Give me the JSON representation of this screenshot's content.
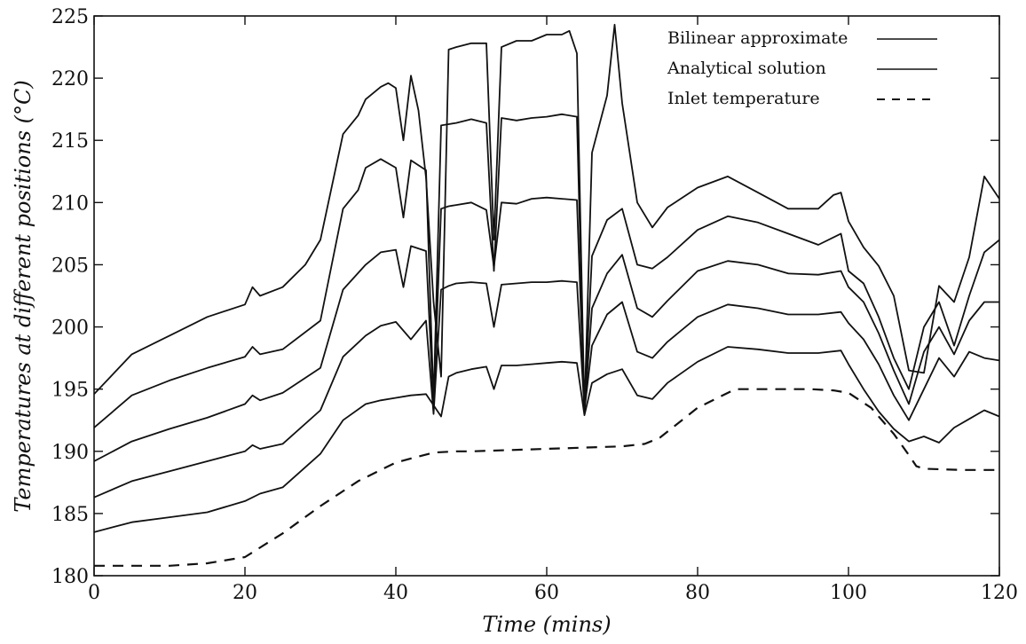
{
  "chart_data": {
    "type": "line",
    "title": "",
    "xlabel": "Time (mins)",
    "ylabel": "Temperatures at different positions (°C)",
    "xlim": [
      0,
      120
    ],
    "ylim": [
      180,
      225
    ],
    "xticks": [
      0,
      20,
      40,
      60,
      80,
      100,
      120
    ],
    "yticks": [
      180,
      185,
      190,
      195,
      200,
      205,
      210,
      215,
      220,
      225
    ],
    "grid": false,
    "legend_position": "top-right",
    "legend": [
      {
        "label": "Bilinear approximate",
        "style": "solid"
      },
      {
        "label": "Analytical solution",
        "style": "solid"
      },
      {
        "label": "Inlet temperature",
        "style": "dashed"
      }
    ],
    "series": [
      {
        "style": "solid",
        "x": [
          0,
          5,
          10,
          15,
          20,
          22,
          25,
          30,
          33,
          36,
          38,
          40,
          42,
          44,
          46,
          47,
          48,
          50,
          52,
          53,
          54,
          56,
          58,
          60,
          62,
          64,
          65,
          66,
          68,
          70,
          72,
          74,
          76,
          80,
          84,
          88,
          92,
          96,
          99,
          100,
          102,
          104,
          106,
          108,
          110,
          112,
          114,
          116,
          118,
          120
        ],
        "y": [
          183.5,
          184.3,
          184.7,
          185.1,
          186,
          186.6,
          187.1,
          189.8,
          192.5,
          193.8,
          194.1,
          194.3,
          194.5,
          194.6,
          192.8,
          196,
          196.3,
          196.6,
          196.8,
          195,
          196.9,
          196.9,
          197,
          197.1,
          197.2,
          197.1,
          192.9,
          195.5,
          196.2,
          196.6,
          194.5,
          194.2,
          195.5,
          197.2,
          198.4,
          198.2,
          197.9,
          197.9,
          198.1,
          197,
          195,
          193.2,
          191.8,
          190.8,
          191.2,
          190.7,
          191.9,
          192.6,
          193.3,
          192.8
        ]
      },
      {
        "style": "solid",
        "x": [
          0,
          5,
          10,
          15,
          20,
          21,
          22,
          25,
          30,
          33,
          36,
          38,
          40,
          42,
          44,
          45,
          46,
          47,
          48,
          50,
          52,
          53,
          54,
          56,
          58,
          60,
          62,
          64,
          65,
          66,
          68,
          70,
          72,
          74,
          76,
          80,
          84,
          88,
          92,
          96,
          99,
          100,
          102,
          104,
          106,
          108,
          110,
          112,
          114,
          116,
          118,
          120
        ],
        "y": [
          186.3,
          187.6,
          188.4,
          189.2,
          190,
          190.5,
          190.2,
          190.6,
          193.3,
          197.6,
          199.3,
          200.1,
          200.4,
          199,
          200.5,
          193,
          203,
          203.3,
          203.5,
          203.6,
          203.5,
          200,
          203.4,
          203.5,
          203.6,
          203.6,
          203.7,
          203.6,
          193.3,
          198.5,
          201,
          202,
          198,
          197.5,
          198.8,
          200.8,
          201.8,
          201.5,
          201,
          201,
          201.2,
          200.3,
          199,
          197,
          194.5,
          192.5,
          195,
          197.5,
          196,
          198,
          197.5,
          197.3
        ]
      },
      {
        "style": "solid",
        "x": [
          0,
          5,
          10,
          15,
          20,
          21,
          22,
          25,
          30,
          33,
          36,
          38,
          40,
          41,
          42,
          44,
          45,
          46,
          47,
          48,
          50,
          52,
          53,
          54,
          56,
          58,
          60,
          62,
          64,
          65,
          66,
          68,
          70,
          72,
          74,
          76,
          80,
          84,
          88,
          92,
          96,
          99,
          100,
          102,
          104,
          106,
          108,
          110,
          112,
          114,
          116,
          118,
          120
        ],
        "y": [
          189.2,
          190.8,
          191.8,
          192.7,
          193.8,
          194.5,
          194.1,
          194.7,
          196.7,
          203,
          205,
          206,
          206.2,
          203.2,
          206.5,
          206.1,
          193.5,
          209.5,
          209.7,
          209.8,
          210,
          209.4,
          204.8,
          210,
          209.9,
          210.3,
          210.4,
          210.3,
          210.2,
          193.3,
          201.5,
          204.3,
          205.8,
          201.5,
          200.8,
          202.1,
          204.5,
          205.3,
          205,
          204.3,
          204.2,
          204.5,
          203.2,
          202,
          199.5,
          196.5,
          193.8,
          198,
          200,
          197.8,
          200.5,
          202,
          202
        ]
      },
      {
        "style": "solid",
        "x": [
          0,
          5,
          10,
          15,
          20,
          21,
          22,
          25,
          30,
          33,
          35,
          36,
          38,
          40,
          41,
          42,
          44,
          45,
          46,
          47,
          48,
          50,
          52,
          53,
          54,
          56,
          58,
          60,
          62,
          64,
          65,
          66,
          68,
          70,
          72,
          74,
          76,
          80,
          84,
          88,
          92,
          96,
          99,
          100,
          102,
          104,
          106,
          108,
          110,
          112,
          114,
          116,
          118,
          120
        ],
        "y": [
          191.9,
          194.5,
          195.7,
          196.7,
          197.6,
          198.4,
          197.8,
          198.2,
          200.5,
          209.5,
          211,
          212.8,
          213.5,
          212.8,
          208.8,
          213.4,
          212.6,
          194,
          216.2,
          216.3,
          216.4,
          216.7,
          216.4,
          204.5,
          216.8,
          216.6,
          216.8,
          216.9,
          217.1,
          216.9,
          193.4,
          205.7,
          208.6,
          209.5,
          205,
          204.7,
          205.6,
          207.8,
          208.9,
          208.4,
          207.5,
          206.6,
          207.5,
          204.5,
          203.5,
          200.8,
          197.5,
          195,
          200,
          202,
          198.5,
          202.5,
          206,
          207
        ]
      },
      {
        "style": "solid",
        "x": [
          0,
          5,
          10,
          15,
          20,
          21,
          22,
          25,
          28,
          30,
          33,
          35,
          36,
          38,
          39,
          40,
          41,
          42,
          43,
          44,
          45,
          46,
          47,
          48,
          50,
          52,
          53,
          54,
          56,
          58,
          60,
          62,
          63,
          64,
          65,
          66,
          68,
          69,
          70,
          72,
          74,
          76,
          80,
          84,
          88,
          92,
          96,
          98,
          99,
          100,
          102,
          104,
          106,
          108,
          110,
          112,
          114,
          116,
          118,
          120
        ],
        "y": [
          194.6,
          197.8,
          199.3,
          200.8,
          201.8,
          203.2,
          202.5,
          203.2,
          205,
          207,
          215.5,
          217,
          218.3,
          219.3,
          219.6,
          219.2,
          215,
          220.2,
          217.4,
          212,
          202,
          196,
          222.3,
          222.5,
          222.8,
          222.8,
          207,
          222.5,
          223,
          223,
          223.5,
          223.5,
          223.8,
          222,
          193.1,
          214,
          218.6,
          224.3,
          218,
          210,
          208,
          209.6,
          211.2,
          212.1,
          210.8,
          209.5,
          209.5,
          210.6,
          210.8,
          208.5,
          206.4,
          204.9,
          202.5,
          196.5,
          196.3,
          203.3,
          202,
          205.6,
          212.1,
          210.3
        ]
      },
      {
        "style": "dashed",
        "x": [
          0,
          5,
          10,
          15,
          20,
          25,
          30,
          35,
          40,
          45,
          48,
          50,
          55,
          60,
          65,
          70,
          73,
          75,
          80,
          85,
          90,
          95,
          98,
          100,
          103,
          106,
          108,
          109,
          110,
          115,
          120
        ],
        "y": [
          180.8,
          180.8,
          180.8,
          181,
          181.5,
          183.4,
          185.6,
          187.6,
          189.1,
          189.9,
          190,
          190,
          190.1,
          190.2,
          190.3,
          190.4,
          190.6,
          191.1,
          193.5,
          195,
          195,
          195,
          194.9,
          194.7,
          193.5,
          191.4,
          189.7,
          188.8,
          188.6,
          188.5,
          188.5
        ]
      }
    ]
  }
}
